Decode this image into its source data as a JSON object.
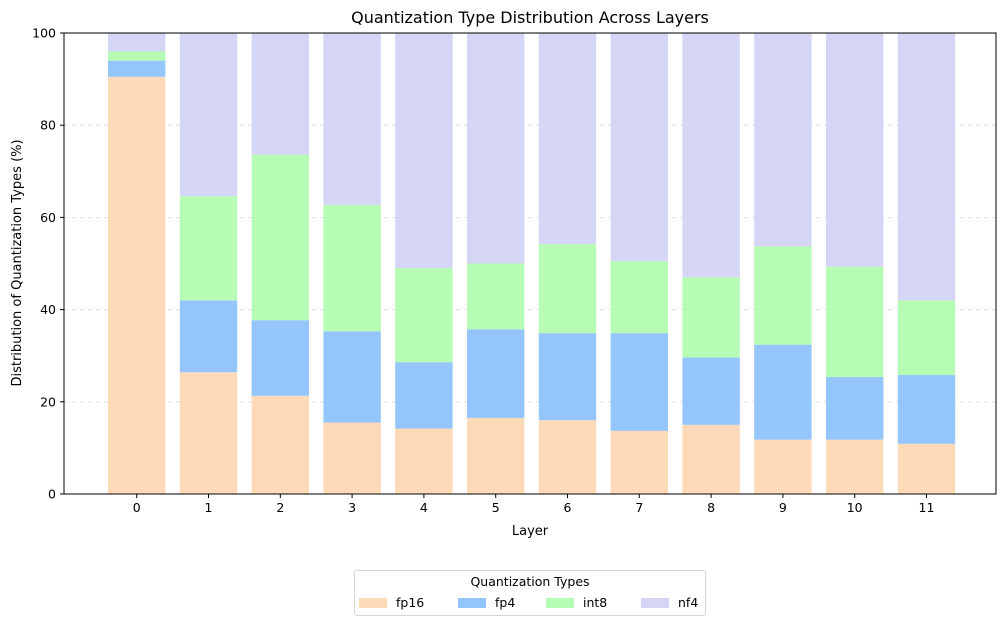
{
  "chart_data": {
    "type": "bar",
    "stacked": true,
    "title": "Quantization Type Distribution Across Layers",
    "xlabel": "Layer",
    "ylabel": "Distribution of Quantization Types (%)",
    "ylim": [
      0,
      100
    ],
    "yticks": [
      0,
      20,
      40,
      60,
      80,
      100
    ],
    "grid": true,
    "categories": [
      "0",
      "1",
      "2",
      "3",
      "4",
      "5",
      "6",
      "7",
      "8",
      "9",
      "10",
      "11"
    ],
    "series": [
      {
        "name": "fp16",
        "color": "#ffdab9",
        "values": [
          90.5,
          26.4,
          21.3,
          15.5,
          14.2,
          16.5,
          16.0,
          13.7,
          15.0,
          11.8,
          11.8,
          10.9
        ]
      },
      {
        "name": "fp4",
        "color": "#94c6fc",
        "values": [
          3.5,
          15.6,
          16.4,
          19.8,
          14.4,
          19.2,
          18.9,
          21.2,
          14.6,
          20.6,
          13.6,
          14.9
        ]
      },
      {
        "name": "int8",
        "color": "#b6fcb5",
        "values": [
          2.0,
          22.6,
          35.9,
          27.4,
          20.4,
          14.3,
          19.3,
          15.6,
          17.4,
          21.3,
          23.9,
          16.2
        ]
      },
      {
        "name": "nf4",
        "color": "#d5d5f5",
        "values": [
          4.0,
          35.4,
          26.4,
          37.3,
          51.0,
          50.0,
          45.8,
          49.5,
          53.0,
          46.3,
          50.7,
          58.0
        ]
      }
    ],
    "legend": {
      "title": "Quantization Types",
      "position": "bottom-center"
    }
  }
}
